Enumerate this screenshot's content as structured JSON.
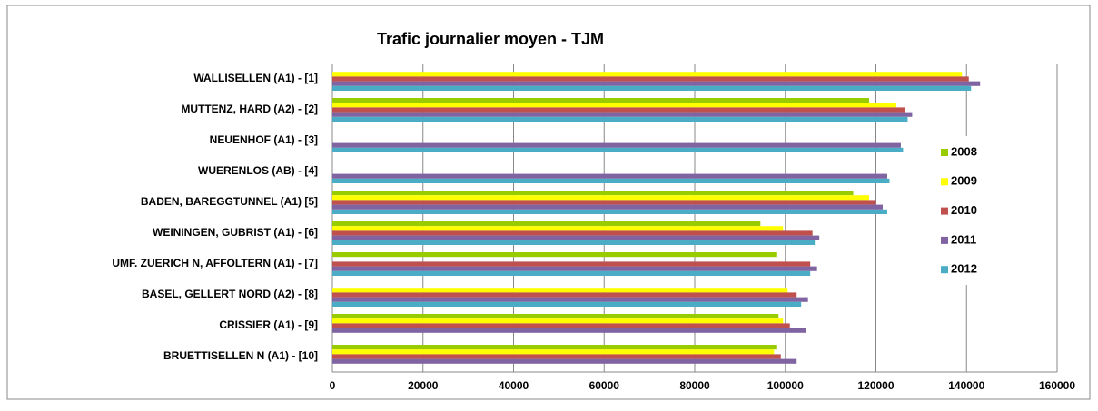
{
  "chart_data": {
    "type": "bar",
    "orientation": "horizontal",
    "title": "Trafic journalier moyen - TJM",
    "categories": [
      "WALLISELLEN (A1) - [1]",
      "MUTTENZ, HARD (A2) - [2]",
      "NEUENHOF (A1) - [3]",
      "WUERENLOS (AB) - [4]",
      "BADEN, BAREGGTUNNEL (A1) [5]",
      "WEININGEN, GUBRIST (A1) - [6]",
      "UMF. ZUERICH N, AFFOLTERN (A1) - [7]",
      "BASEL, GELLERT NORD (A2) - [8]",
      "CRISSIER (A1) - [9]",
      "BRUETTISELLEN N (A1) - [10]"
    ],
    "series": [
      {
        "name": "2008",
        "color": "#99cc00",
        "values": [
          null,
          118500,
          null,
          null,
          115000,
          94500,
          98000,
          null,
          98500,
          98000
        ]
      },
      {
        "name": "2009",
        "color": "#ffff00",
        "values": [
          139000,
          124500,
          null,
          null,
          118500,
          99500,
          null,
          100500,
          99500,
          97500
        ]
      },
      {
        "name": "2010",
        "color": "#c0504d",
        "values": [
          140500,
          126500,
          null,
          null,
          120000,
          106000,
          105500,
          102500,
          101000,
          99000
        ]
      },
      {
        "name": "2011",
        "color": "#8064a2",
        "values": [
          143000,
          128000,
          125500,
          122500,
          121500,
          107500,
          107000,
          105000,
          104500,
          102500
        ]
      },
      {
        "name": "2012",
        "color": "#4bacc6",
        "values": [
          141000,
          127000,
          126000,
          123000,
          122500,
          106500,
          105500,
          103500,
          null,
          null
        ]
      }
    ],
    "xlim": [
      0,
      160000
    ],
    "xticks": [
      0,
      20000,
      40000,
      60000,
      80000,
      100000,
      120000,
      140000,
      160000
    ],
    "grid": true,
    "legend_position": "right"
  }
}
